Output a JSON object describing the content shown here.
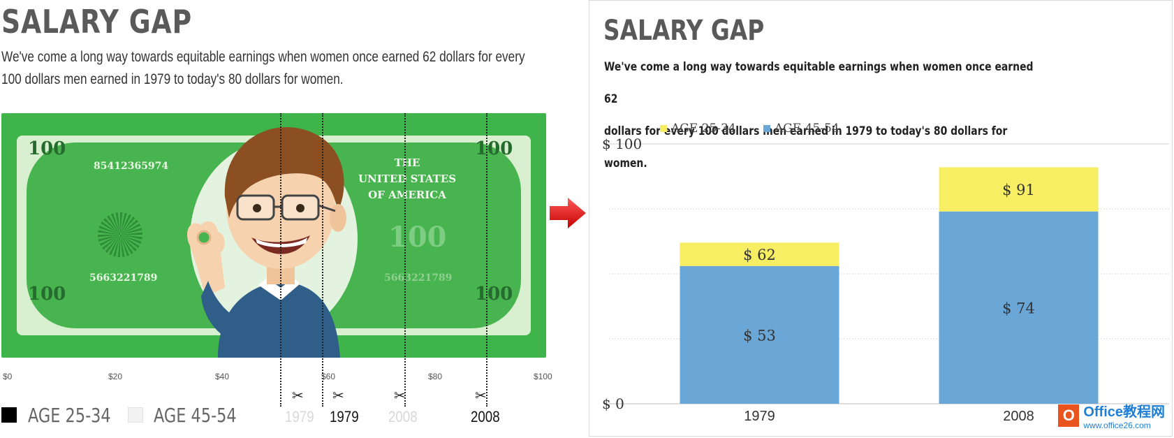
{
  "left_panel": {
    "title": "SALARY GAP",
    "subtitle_line1": "We've come a long way towards equitable earnings when women once earned 62 dollars for every",
    "subtitle_line2": "100 dollars men earned in 1979 to today's 80 dollars for women.",
    "bill": {
      "corner_label": "100",
      "serial_top": "85412365974",
      "serial_bottom": "5663221789",
      "serial_bottom_faded": "5663221789",
      "country_line1": "THE",
      "country_line2": "UNITED STATES",
      "country_line3": "OF AMERICA",
      "watermark": "100"
    },
    "axis_ticks": [
      "$0",
      "$20",
      "$40",
      "$60",
      "$80",
      "$100"
    ],
    "cut_labels": [
      {
        "label": "1979",
        "faded": true
      },
      {
        "label": "1979",
        "faded": false
      },
      {
        "label": "2008",
        "faded": true
      },
      {
        "label": "2008",
        "faded": false
      }
    ],
    "legend": [
      {
        "label": "AGE 25-34",
        "color": "#000000"
      },
      {
        "label": "AGE 45-54",
        "color": "#f2f2f2"
      }
    ]
  },
  "right_panel": {
    "title": "SALARY GAP",
    "subtitle_line1": "We've come a long way towards equitable earnings when women once earned 62",
    "subtitle_line2": "dollars for every 100 dollars men earned in 1979 to today's 80 dollars for women.",
    "watermark_icon": "O",
    "watermark_text": "Office教程网",
    "watermark_url": "www.office26.com"
  },
  "chart_data": {
    "type": "bar",
    "stacked": true,
    "categories": [
      "1979",
      "2008"
    ],
    "series": [
      {
        "name": "AGE 45-54",
        "values": [
          53,
          74
        ],
        "labels": [
          "$ 53",
          "$ 74"
        ],
        "color": "#6aa6d6"
      },
      {
        "name": "AGE 25-34",
        "values": [
          9,
          17
        ],
        "labels": [
          "$ 62",
          "$ 91"
        ],
        "color": "#f7ee63"
      }
    ],
    "totals": [
      62,
      91
    ],
    "legend": [
      {
        "name": "AGE 25-34",
        "color": "#f7ee63"
      },
      {
        "name": "AGE 45-54",
        "color": "#6aa6d6"
      }
    ],
    "y_tick_labels": [
      "$ 0",
      "$ 100"
    ],
    "ylim": [
      0,
      100
    ],
    "grid": true,
    "legend_position": "top-left"
  }
}
